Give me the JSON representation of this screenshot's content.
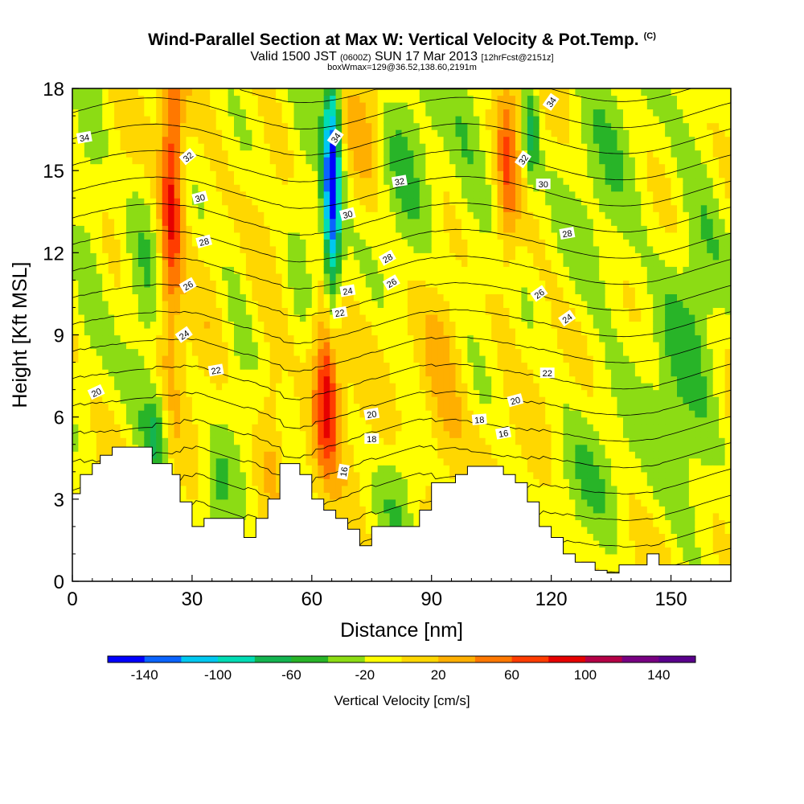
{
  "title": {
    "main": "Wind-Parallel Section at Max W: Vertical Velocity & Pot.Temp.",
    "copyright": "(C)",
    "valid_prefix": "Valid 1500 JST",
    "valid_utc": "(0600Z)",
    "valid_date": "SUN 17 Mar 2013",
    "forecast": "[12hrFcst@2151z]",
    "box": "boxWmax=129@36.52,138.60,2191m"
  },
  "chart_data": {
    "type": "heatmap",
    "xlabel": "Distance [nm]",
    "ylabel": "Height [Kft MSL]",
    "xlim": [
      0,
      165
    ],
    "ylim": [
      0,
      18
    ],
    "xticks": [
      "0",
      "30",
      "60",
      "90",
      "120",
      "150"
    ],
    "xtick_values": [
      0,
      30,
      60,
      90,
      120,
      150
    ],
    "yticks": [
      "0",
      "3",
      "6",
      "9",
      "12",
      "15",
      "18"
    ],
    "ytick_values": [
      0,
      3,
      6,
      9,
      12,
      15,
      18
    ],
    "colorbar": {
      "label": "Vertical Velocity [cm/s]",
      "tick_labels": [
        "-140",
        "-100",
        "-60",
        "-20",
        "20",
        "60",
        "100",
        "140"
      ],
      "tick_values": [
        -140,
        -100,
        -60,
        -20,
        20,
        60,
        100,
        140
      ],
      "bounds": [
        -160,
        160
      ],
      "colors": [
        "#0000ff",
        "#0a64ff",
        "#00c8f0",
        "#00dcb4",
        "#14b450",
        "#28b428",
        "#8cdc14",
        "#ffff00",
        "#ffd700",
        "#ffaf00",
        "#ff7800",
        "#ff3c00",
        "#e60000",
        "#b40046",
        "#780082",
        "#5a008c"
      ]
    },
    "terrain": {
      "x": [
        0,
        2,
        2,
        5,
        5,
        7,
        7,
        10,
        10,
        13,
        13,
        20,
        20,
        25,
        25,
        27,
        27,
        30,
        30,
        33,
        33,
        43,
        43,
        46,
        46,
        49,
        49,
        52,
        52,
        57,
        57,
        60,
        60,
        63,
        63,
        66,
        66,
        69,
        69,
        72,
        72,
        75,
        75,
        87,
        87,
        90,
        90,
        96,
        96,
        99,
        99,
        102,
        102,
        108,
        108,
        111,
        111,
        114,
        114,
        117,
        117,
        120,
        120,
        123,
        123,
        126,
        126,
        131,
        131,
        134,
        134,
        137,
        137,
        144,
        144,
        147,
        147,
        153,
        153,
        165
      ],
      "y": [
        3.2,
        3.2,
        3.9,
        3.9,
        4.3,
        4.3,
        4.6,
        4.6,
        4.9,
        4.9,
        4.9,
        4.9,
        4.3,
        4.3,
        3.9,
        3.9,
        2.9,
        2.9,
        2.0,
        2.0,
        2.3,
        2.3,
        1.6,
        1.6,
        2.3,
        2.3,
        3.0,
        3.0,
        4.3,
        4.3,
        3.9,
        3.9,
        3.0,
        3.0,
        2.6,
        2.6,
        2.3,
        2.3,
        1.9,
        1.9,
        1.3,
        1.3,
        2.0,
        2.0,
        2.6,
        2.6,
        3.6,
        3.6,
        3.9,
        3.9,
        4.2,
        4.2,
        4.2,
        4.2,
        3.9,
        3.9,
        3.6,
        3.6,
        2.9,
        2.9,
        2.0,
        2.0,
        1.6,
        1.6,
        1.0,
        1.0,
        0.7,
        0.7,
        0.4,
        0.4,
        0.3,
        0.3,
        0.6,
        0.6,
        1.0,
        1.0,
        0.6,
        0.6,
        0.6,
        0.6
      ]
    },
    "w_features": [
      {
        "x": 25,
        "y": 15,
        "sx": 2.0,
        "sy": 3.5,
        "w": 70
      },
      {
        "x": 24,
        "y": 11,
        "sx": 2.0,
        "sy": 3.0,
        "w": 30
      },
      {
        "x": 65,
        "y": 14.5,
        "sx": 1.6,
        "sy": 3.4,
        "w": -150
      },
      {
        "x": 64,
        "y": 6.8,
        "sx": 2.0,
        "sy": 1.8,
        "w": 90
      },
      {
        "x": 63,
        "y": 9.5,
        "sx": 2.5,
        "sy": 2.0,
        "w": 40
      },
      {
        "x": 109,
        "y": 15.5,
        "sx": 1.8,
        "sy": 3.0,
        "w": 50
      },
      {
        "x": 115,
        "y": 16.5,
        "sx": 1.4,
        "sy": 1.5,
        "w": -60
      },
      {
        "x": 50,
        "y": 6.0,
        "sx": 2.0,
        "sy": 1.8,
        "w": 28
      },
      {
        "x": 93,
        "y": 7.0,
        "sx": 4.0,
        "sy": 3.0,
        "w": 32
      },
      {
        "x": 74,
        "y": 16.5,
        "sx": 3.0,
        "sy": 2.0,
        "w": 28
      },
      {
        "x": 4,
        "y": 14,
        "sx": 3.5,
        "sy": 4.0,
        "w": -32
      },
      {
        "x": 18,
        "y": 8.5,
        "sx": 3.5,
        "sy": 6.0,
        "w": -28
      },
      {
        "x": 21,
        "y": 5.5,
        "sx": 2.0,
        "sy": 1.2,
        "w": -55
      },
      {
        "x": 41,
        "y": 9.0,
        "sx": 3.0,
        "sy": 3.5,
        "w": -24
      },
      {
        "x": 36,
        "y": 3.0,
        "sx": 2.5,
        "sy": 1.2,
        "w": -35
      },
      {
        "x": 58,
        "y": 15,
        "sx": 3.5,
        "sy": 4.0,
        "w": -30
      },
      {
        "x": 84,
        "y": 15,
        "sx": 6.0,
        "sy": 4.5,
        "w": -30
      },
      {
        "x": 100,
        "y": 15,
        "sx": 4.5,
        "sy": 4.0,
        "w": -30
      },
      {
        "x": 134,
        "y": 14,
        "sx": 8.0,
        "sy": 5.0,
        "w": -28
      },
      {
        "x": 157,
        "y": 13,
        "sx": 5.0,
        "sy": 6.0,
        "w": -30
      },
      {
        "x": 82,
        "y": 3.2,
        "sx": 4.0,
        "sy": 1.5,
        "w": -28
      },
      {
        "x": 128,
        "y": 4.0,
        "sx": 7.0,
        "sy": 2.0,
        "w": -28
      },
      {
        "x": 155,
        "y": 3.5,
        "sx": 6.0,
        "sy": 2.0,
        "w": -25
      },
      {
        "x": 150,
        "y": 8.0,
        "sx": 5.0,
        "sy": 2.5,
        "w": -24
      }
    ],
    "theta_labels": [
      {
        "text": "34",
        "x": 3,
        "y": 16.2,
        "rot": -10
      },
      {
        "text": "32",
        "x": 29,
        "y": 15.5,
        "rot": -40
      },
      {
        "text": "30",
        "x": 32,
        "y": 14.0,
        "rot": -15
      },
      {
        "text": "28",
        "x": 33,
        "y": 12.4,
        "rot": -15
      },
      {
        "text": "26",
        "x": 29,
        "y": 10.8,
        "rot": -30
      },
      {
        "text": "24",
        "x": 28,
        "y": 9.0,
        "rot": -35
      },
      {
        "text": "22",
        "x": 36,
        "y": 7.7,
        "rot": -10
      },
      {
        "text": "20",
        "x": 6,
        "y": 6.9,
        "rot": -25
      },
      {
        "text": "34",
        "x": 66,
        "y": 16.2,
        "rot": -55
      },
      {
        "text": "32",
        "x": 82,
        "y": 14.6,
        "rot": -10
      },
      {
        "text": "30",
        "x": 69,
        "y": 13.4,
        "rot": -15
      },
      {
        "text": "28",
        "x": 79,
        "y": 11.8,
        "rot": -30
      },
      {
        "text": "26",
        "x": 80,
        "y": 10.9,
        "rot": -30
      },
      {
        "text": "24",
        "x": 69,
        "y": 10.6,
        "rot": -10
      },
      {
        "text": "22",
        "x": 67,
        "y": 9.8,
        "rot": -10
      },
      {
        "text": "20",
        "x": 75,
        "y": 6.1,
        "rot": -10
      },
      {
        "text": "18",
        "x": 75,
        "y": 5.2,
        "rot": 0
      },
      {
        "text": "16",
        "x": 68,
        "y": 4.0,
        "rot": -80
      },
      {
        "text": "18",
        "x": 102,
        "y": 5.9,
        "rot": -5
      },
      {
        "text": "16",
        "x": 108,
        "y": 5.4,
        "rot": -10
      },
      {
        "text": "20",
        "x": 111,
        "y": 6.6,
        "rot": -15
      },
      {
        "text": "22",
        "x": 119,
        "y": 7.6,
        "rot": 0
      },
      {
        "text": "32",
        "x": 113,
        "y": 15.4,
        "rot": -55
      },
      {
        "text": "34",
        "x": 120,
        "y": 17.5,
        "rot": -55
      },
      {
        "text": "30",
        "x": 118,
        "y": 14.5,
        "rot": 0
      },
      {
        "text": "28",
        "x": 124,
        "y": 12.7,
        "rot": -10
      },
      {
        "text": "26",
        "x": 117,
        "y": 10.5,
        "rot": -35
      },
      {
        "text": "24",
        "x": 124,
        "y": 9.6,
        "rot": -35
      }
    ]
  }
}
